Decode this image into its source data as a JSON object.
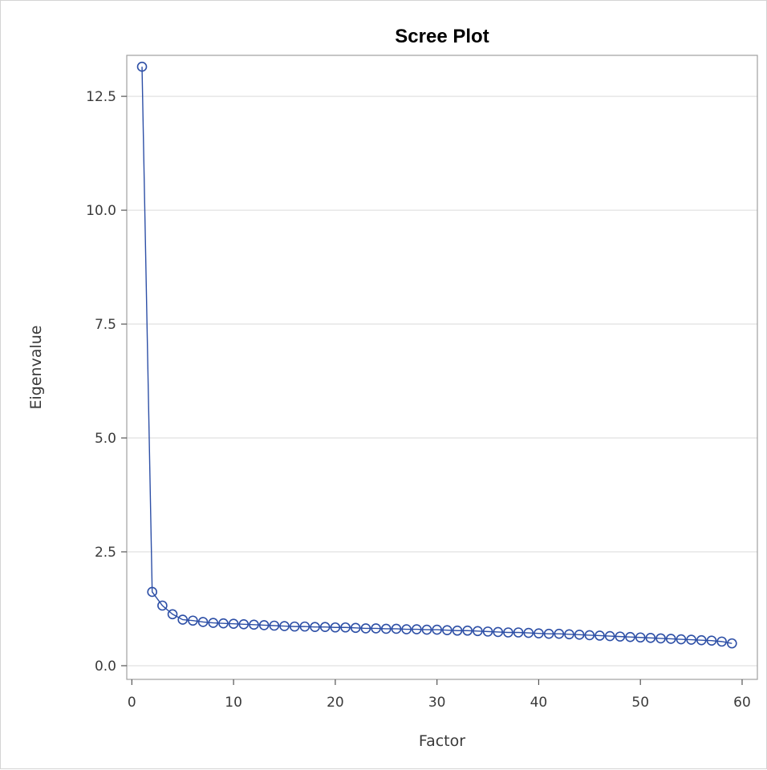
{
  "chart_data": {
    "type": "line",
    "title": "Scree Plot",
    "xlabel": "Factor",
    "ylabel": "Eigenvalue",
    "xlim": [
      -0.5,
      61.5
    ],
    "ylim": [
      -0.3,
      13.4
    ],
    "x_ticks": [
      0,
      10,
      20,
      30,
      40,
      50,
      60
    ],
    "y_ticks": [
      0.0,
      2.5,
      5.0,
      7.5,
      10.0,
      12.5
    ],
    "x_tick_labels": [
      "0",
      "10",
      "20",
      "30",
      "40",
      "50",
      "60"
    ],
    "y_tick_labels": [
      "0.0",
      "2.5",
      "5.0",
      "7.5",
      "10.0",
      "12.5"
    ],
    "grid": "horizontal",
    "legend": "none",
    "markers": "open-circle",
    "color": "#2d4fa6",
    "gridline_color": "#e6e6e6",
    "x": [
      1,
      2,
      3,
      4,
      5,
      6,
      7,
      8,
      9,
      10,
      11,
      12,
      13,
      14,
      15,
      16,
      17,
      18,
      19,
      20,
      21,
      22,
      23,
      24,
      25,
      26,
      27,
      28,
      29,
      30,
      31,
      32,
      33,
      34,
      35,
      36,
      37,
      38,
      39,
      40,
      41,
      42,
      43,
      44,
      45,
      46,
      47,
      48,
      49,
      50,
      51,
      52,
      53,
      54,
      55,
      56,
      57,
      58,
      59
    ],
    "y": [
      13.15,
      1.62,
      1.32,
      1.13,
      1.01,
      0.99,
      0.96,
      0.94,
      0.93,
      0.92,
      0.91,
      0.9,
      0.89,
      0.88,
      0.87,
      0.86,
      0.86,
      0.85,
      0.85,
      0.84,
      0.84,
      0.83,
      0.82,
      0.82,
      0.81,
      0.81,
      0.8,
      0.8,
      0.79,
      0.79,
      0.78,
      0.77,
      0.77,
      0.76,
      0.75,
      0.74,
      0.73,
      0.73,
      0.72,
      0.71,
      0.7,
      0.7,
      0.69,
      0.68,
      0.67,
      0.66,
      0.65,
      0.64,
      0.63,
      0.62,
      0.61,
      0.6,
      0.59,
      0.58,
      0.57,
      0.56,
      0.55,
      0.53,
      0.49
    ]
  }
}
